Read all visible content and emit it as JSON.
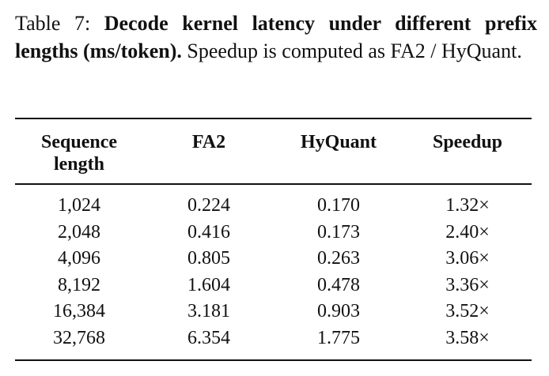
{
  "caption": {
    "label": "Table 7: ",
    "bold_text": "Decode kernel latency under different prefix lengths (ms/token).",
    "rest_text": " Speedup is computed as FA2 / HyQuant."
  },
  "table": {
    "headers": [
      "Sequence length",
      "FA2",
      "HyQuant",
      "Speedup"
    ],
    "rows": [
      [
        "1,024",
        "0.224",
        "0.170",
        "1.32×"
      ],
      [
        "2,048",
        "0.416",
        "0.173",
        "2.40×"
      ],
      [
        "4,096",
        "0.805",
        "0.263",
        "3.06×"
      ],
      [
        "8,192",
        "1.604",
        "0.478",
        "3.36×"
      ],
      [
        "16,384",
        "3.181",
        "0.903",
        "3.52×"
      ],
      [
        "32,768",
        "6.354",
        "1.775",
        "3.58×"
      ]
    ]
  }
}
